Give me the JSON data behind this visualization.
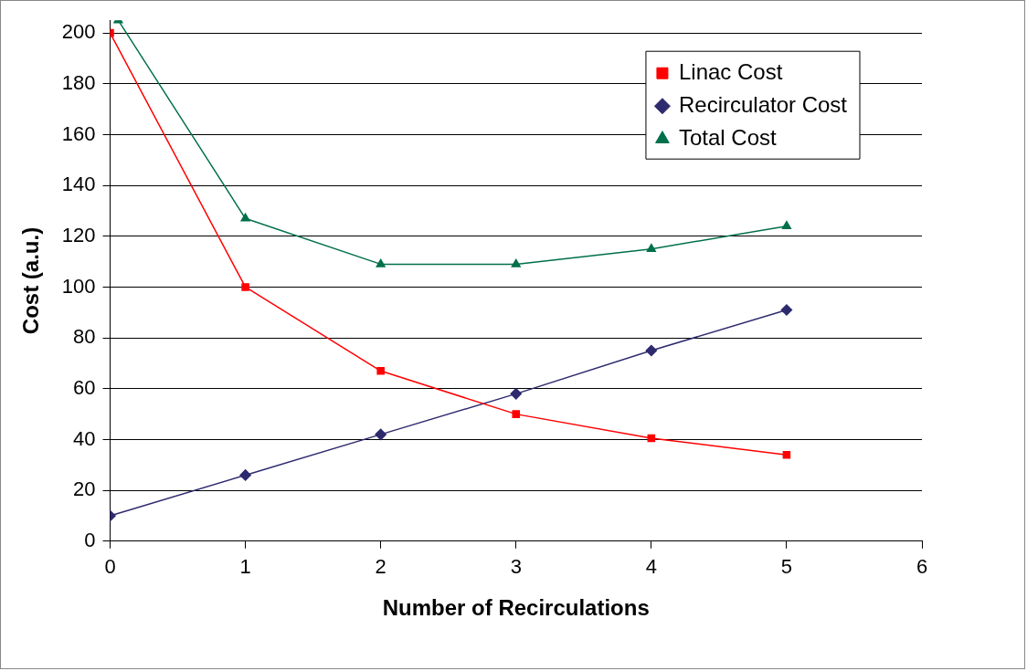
{
  "chart_data": {
    "type": "line",
    "xlabel": "Number of Recirculations",
    "ylabel": "Cost (a.u.)",
    "x": [
      0,
      1,
      2,
      3,
      4,
      5
    ],
    "series": [
      {
        "name": "Linac Cost",
        "color": "#ff0000",
        "marker": "square",
        "values": [
          200,
          100,
          67,
          50,
          40.5,
          34
        ]
      },
      {
        "name": "Recirculator Cost",
        "color": "#2e2a6e",
        "marker": "diamond",
        "values": [
          10,
          26,
          42,
          58,
          75,
          91
        ]
      },
      {
        "name": "Total Cost",
        "color": "#00704a",
        "marker": "triangle",
        "x": [
          0.06,
          1,
          2,
          3,
          4,
          5
        ],
        "values": [
          205,
          127,
          109,
          109,
          115,
          124
        ]
      }
    ],
    "xlim": [
      0,
      6
    ],
    "xticks": [
      0,
      1,
      2,
      3,
      4,
      5,
      6
    ],
    "ylim": [
      0,
      205
    ],
    "yticks": [
      0,
      20,
      40,
      60,
      80,
      100,
      120,
      140,
      160,
      180,
      200
    ],
    "grid": "y",
    "legend": "top right"
  }
}
